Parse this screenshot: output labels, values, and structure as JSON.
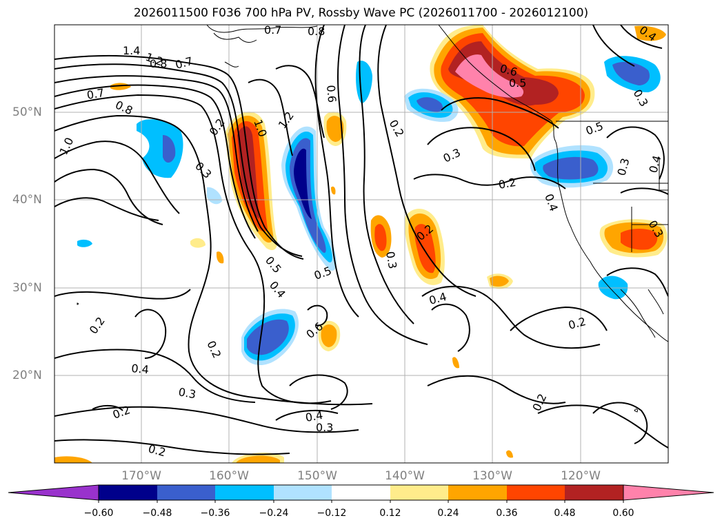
{
  "title": "2026011500 F036 700 hPa PV, Rossby Wave PC (2026011700 - 2026012100)",
  "lat_labels": [
    "50°N",
    "40°N",
    "30°N",
    "20°N"
  ],
  "lon_labels": [
    "170°W",
    "160°W",
    "150°W",
    "140°W",
    "130°W",
    "120°W"
  ],
  "colorbar": {
    "ticks": [
      "−0.60",
      "−0.48",
      "−0.36",
      "−0.24",
      "−0.12",
      "0.12",
      "0.24",
      "0.36",
      "0.48",
      "0.60"
    ],
    "colors": [
      "#9932cc",
      "#00008b",
      "#3a5fcd",
      "#00bfff",
      "#b0e2ff",
      "#ffffff",
      "#ffec8b",
      "#ffa500",
      "#ff4500",
      "#b22222",
      "#ff82ab"
    ]
  },
  "contour_labels": [
    {
      "text": "1.4"
    },
    {
      "text": "1.2"
    },
    {
      "text": "0.8"
    },
    {
      "text": "0.7"
    },
    {
      "text": "0.7"
    },
    {
      "text": "0.8"
    },
    {
      "text": "1.0"
    },
    {
      "text": "0.3"
    },
    {
      "text": "0.2"
    },
    {
      "text": "1.0"
    },
    {
      "text": "1.2"
    },
    {
      "text": "0.5"
    },
    {
      "text": "0.4"
    },
    {
      "text": "0.5"
    },
    {
      "text": "0.6"
    },
    {
      "text": "0.6"
    },
    {
      "text": "0.2"
    },
    {
      "text": "0.3"
    },
    {
      "text": "0.2"
    },
    {
      "text": "0.3"
    },
    {
      "text": "0.2"
    },
    {
      "text": "0.6"
    },
    {
      "text": "0.5"
    },
    {
      "text": "0.5"
    },
    {
      "text": "0.3"
    },
    {
      "text": "0.4"
    },
    {
      "text": "0.4"
    },
    {
      "text": "0.2"
    },
    {
      "text": "0.4"
    },
    {
      "text": "0.3"
    },
    {
      "text": "0.2"
    },
    {
      "text": "0.2"
    },
    {
      "text": "0.4"
    },
    {
      "text": "0.3"
    },
    {
      "text": "0.2"
    },
    {
      "text": "0.2"
    },
    {
      "text": "0.2"
    },
    {
      "text": "0.7"
    },
    {
      "text": "0.8"
    },
    {
      "text": "0.4"
    },
    {
      "text": "0.3"
    },
    {
      "text": "0.4"
    },
    {
      "text": "0.3"
    }
  ]
}
